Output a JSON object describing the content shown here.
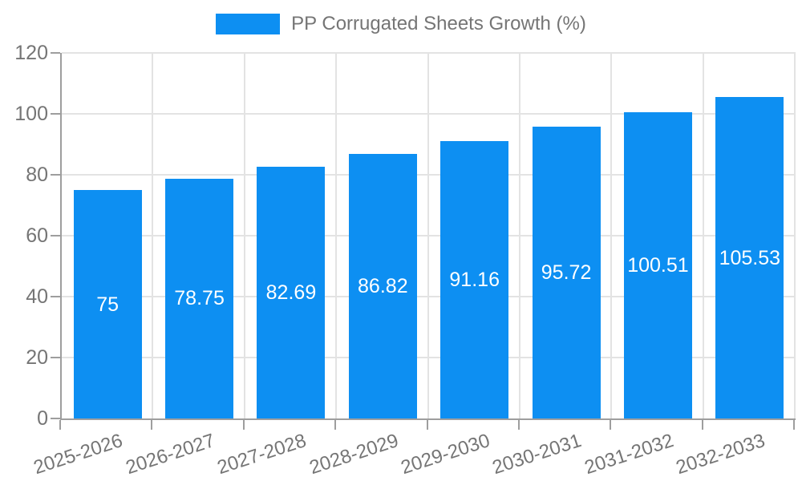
{
  "legend": {
    "label": "PP Corrugated Sheets Growth (%)"
  },
  "chart_data": {
    "type": "bar",
    "title": "",
    "xlabel": "",
    "ylabel": "",
    "legend_entries": [
      "PP Corrugated Sheets Growth (%)"
    ],
    "legend_position": "top-center",
    "categories": [
      "2025-2026",
      "2026-2027",
      "2027-2028",
      "2028-2029",
      "2029-2030",
      "2030-2031",
      "2031-2032",
      "2032-2033"
    ],
    "series": [
      {
        "name": "PP Corrugated Sheets Growth (%)",
        "values": [
          75,
          78.75,
          82.69,
          86.82,
          91.16,
          95.72,
          100.51,
          105.53
        ]
      }
    ],
    "value_labels": [
      "75",
      "78.75",
      "82.69",
      "86.82",
      "91.16",
      "95.72",
      "100.51",
      "105.53"
    ],
    "ylim": [
      0,
      120
    ],
    "yticks": [
      0,
      20,
      40,
      60,
      80,
      100,
      120
    ],
    "grid": true
  },
  "colors": {
    "bar": "#0d8ff2",
    "grid": "#e3e3e3",
    "axis": "#9e9e9e",
    "tick_text": "#757575",
    "value_text": "#ffffff"
  }
}
